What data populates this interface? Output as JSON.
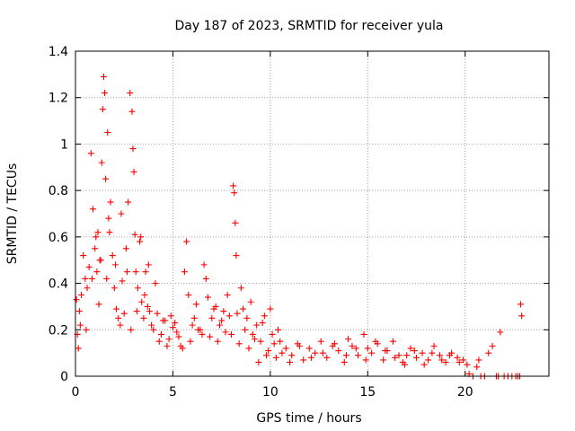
{
  "chart_data": {
    "type": "scatter",
    "title": "Day 187 of 2023, SRMTID for receiver yula",
    "xlabel": "GPS time / hours",
    "ylabel": "SRMTID / TECUs",
    "xlim": [
      0,
      24.3
    ],
    "ylim": [
      0,
      1.4
    ],
    "xticks": [
      0,
      5,
      10,
      15,
      20
    ],
    "xtick_labels": [
      "0",
      "5",
      "10",
      "15",
      "20"
    ],
    "yticks": [
      0,
      0.2,
      0.4,
      0.6,
      0.8,
      1.0,
      1.2,
      1.4
    ],
    "ytick_labels": [
      "0",
      "0.2",
      "0.4",
      "0.6",
      "0.8",
      "1",
      "1.2",
      "1.4"
    ],
    "grid": true,
    "marker": "plus",
    "series": [
      {
        "name": "SRMTID",
        "color": "#ff0000",
        "x": [
          0.05,
          0.1,
          0.15,
          0.2,
          0.3,
          0.4,
          0.5,
          0.6,
          0.7,
          0.8,
          0.9,
          1.0,
          1.05,
          1.1,
          1.15,
          1.2,
          1.3,
          1.4,
          1.45,
          1.5,
          1.55,
          1.6,
          1.7,
          1.8,
          1.9,
          2.0,
          2.1,
          2.2,
          2.3,
          2.4,
          2.5,
          2.6,
          2.7,
          2.8,
          2.9,
          2.95,
          3.0,
          3.05,
          3.1,
          3.2,
          3.3,
          3.4,
          3.5,
          3.6,
          3.7,
          3.8,
          3.9,
          4.0,
          4.2,
          4.4,
          4.6,
          4.8,
          5.0,
          5.2,
          5.4,
          5.6,
          5.7,
          5.8,
          5.9,
          6.0,
          6.2,
          6.4,
          6.5,
          6.6,
          6.7,
          6.8,
          7.0,
          7.2,
          7.4,
          7.6,
          7.8,
          8.0,
          8.1,
          8.15,
          8.2,
          8.25,
          8.3,
          8.5,
          8.6,
          8.7,
          8.9,
          9.1,
          9.3,
          9.5,
          9.7,
          9.9,
          10.1,
          10.3,
          10.5,
          10.8,
          11.1,
          11.4,
          11.7,
          12.0,
          12.3,
          12.6,
          12.9,
          13.2,
          13.5,
          13.8,
          14.0,
          14.2,
          14.5,
          14.8,
          15.0,
          15.2,
          15.5,
          15.8,
          16.0,
          16.3,
          16.6,
          16.9,
          17.2,
          17.5,
          17.8,
          18.1,
          18.4,
          18.7,
          19.0,
          19.3,
          19.6,
          19.9,
          20.1,
          20.2,
          20.4,
          20.6,
          20.7,
          20.8,
          21.0,
          21.2,
          21.4,
          21.6,
          21.7,
          21.8,
          22.0,
          22.2,
          22.4,
          22.6,
          22.7,
          22.8,
          22.85,
          22.9,
          0.25,
          0.55,
          0.85,
          1.25,
          1.35,
          1.65,
          1.75,
          2.05,
          2.35,
          2.65,
          2.85,
          3.15,
          3.35,
          3.55,
          3.75,
          4.1,
          4.3,
          4.5,
          4.7,
          4.9,
          5.1,
          5.3,
          5.5,
          6.1,
          6.3,
          6.9,
          7.1,
          7.3,
          7.5,
          7.7,
          7.9,
          8.4,
          8.8,
          9.0,
          9.2,
          9.4,
          9.6,
          9.8,
          10.0,
          10.2,
          10.4,
          10.6,
          11.0,
          11.5,
          12.1,
          12.7,
          13.3,
          13.9,
          14.4,
          14.9,
          15.4,
          15.9,
          16.4,
          16.8,
          17.0,
          17.4,
          17.9,
          18.3,
          18.8,
          19.2,
          19.7
        ],
        "y": [
          0.33,
          0.18,
          0.12,
          0.28,
          0.35,
          0.52,
          0.42,
          0.38,
          0.47,
          0.96,
          0.72,
          0.55,
          0.6,
          0.45,
          0.62,
          0.31,
          0.5,
          1.15,
          1.29,
          1.22,
          0.85,
          0.42,
          0.68,
          0.75,
          0.52,
          0.38,
          0.29,
          0.25,
          0.22,
          0.41,
          0.27,
          0.55,
          0.75,
          1.22,
          1.14,
          0.98,
          0.88,
          0.61,
          0.45,
          0.38,
          0.58,
          0.32,
          0.25,
          0.45,
          0.3,
          0.28,
          0.22,
          0.2,
          0.27,
          0.18,
          0.24,
          0.16,
          0.21,
          0.19,
          0.13,
          0.45,
          0.58,
          0.35,
          0.15,
          0.22,
          0.31,
          0.2,
          0.18,
          0.48,
          0.42,
          0.34,
          0.25,
          0.3,
          0.22,
          0.28,
          0.35,
          0.18,
          0.82,
          0.79,
          0.66,
          0.52,
          0.27,
          0.38,
          0.29,
          0.2,
          0.12,
          0.18,
          0.22,
          0.15,
          0.26,
          0.11,
          0.18,
          0.08,
          0.15,
          0.12,
          0.09,
          0.14,
          0.07,
          0.12,
          0.1,
          0.15,
          0.08,
          0.13,
          0.11,
          0.06,
          0.16,
          0.13,
          0.09,
          0.18,
          0.12,
          0.1,
          0.14,
          0.07,
          0.11,
          0.15,
          0.09,
          0.05,
          0.12,
          0.08,
          0.1,
          0.07,
          0.13,
          0.09,
          0.06,
          0.1,
          0.08,
          0.07,
          0.05,
          0.01,
          0.0,
          0.04,
          0.07,
          0.0,
          0.0,
          0.1,
          0.13,
          0.0,
          0.0,
          0.19,
          0.0,
          0.0,
          0.0,
          0.0,
          0.0,
          0.0,
          0.31,
          0.26,
          0.22,
          0.2,
          0.42,
          0.5,
          0.92,
          1.05,
          0.62,
          0.48,
          0.7,
          0.45,
          0.2,
          0.28,
          0.6,
          0.35,
          0.48,
          0.4,
          0.15,
          0.24,
          0.13,
          0.26,
          0.23,
          0.17,
          0.12,
          0.25,
          0.2,
          0.17,
          0.29,
          0.15,
          0.24,
          0.19,
          0.26,
          0.14,
          0.25,
          0.32,
          0.16,
          0.06,
          0.23,
          0.09,
          0.29,
          0.14,
          0.2,
          0.1,
          0.06,
          0.13,
          0.08,
          0.1,
          0.14,
          0.09,
          0.12,
          0.07,
          0.15,
          0.11,
          0.08,
          0.06,
          0.09,
          0.11,
          0.05,
          0.1,
          0.07,
          0.09,
          0.06
        ]
      }
    ]
  }
}
